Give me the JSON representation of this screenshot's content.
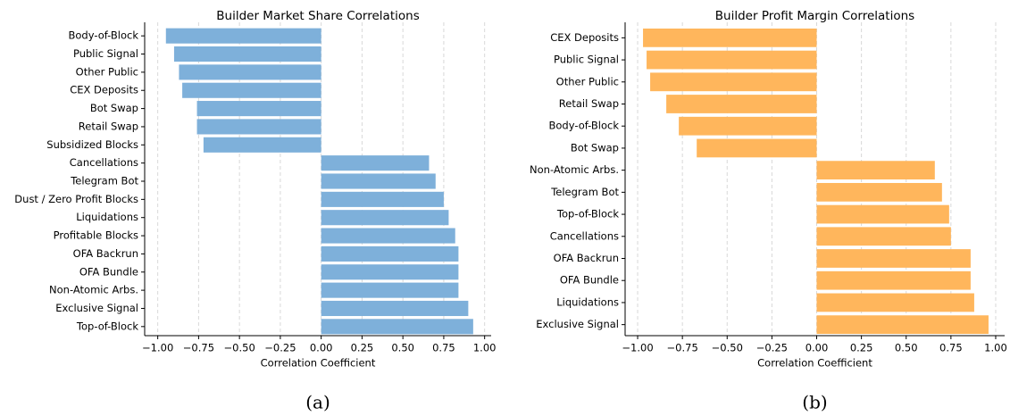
{
  "chart_data": [
    {
      "type": "barh",
      "title": "Builder Market Share Correlations",
      "xlabel": "Correlation Coefficient",
      "caption": "(a)",
      "color": "#7eb0da",
      "grid": true,
      "categories": [
        "Body-of-Block",
        "Public Signal",
        "Other Public",
        "CEX Deposits",
        "Bot Swap",
        "Retail Swap",
        "Subsidized Blocks",
        "Cancellations",
        "Telegram Bot",
        "Dust / Zero Profit Blocks",
        "Liquidations",
        "Profitable Blocks",
        "OFA Backrun",
        "OFA Bundle",
        "Non-Atomic Arbs.",
        "Exclusive Signal",
        "Top-of-Block"
      ],
      "values": [
        -0.95,
        -0.9,
        -0.87,
        -0.85,
        -0.76,
        -0.76,
        -0.72,
        0.66,
        0.7,
        0.75,
        0.78,
        0.82,
        0.84,
        0.84,
        0.84,
        0.9,
        0.93
      ],
      "xlim": [
        -1.08,
        1.04
      ],
      "xticks": [
        {
          "value": -1,
          "label": "−1.00"
        },
        {
          "value": -0.75,
          "label": "−0.75"
        },
        {
          "value": -0.5,
          "label": "−0.50"
        },
        {
          "value": -0.25,
          "label": "−0.25"
        },
        {
          "value": 0,
          "label": "0.00"
        },
        {
          "value": 0.25,
          "label": "0.25"
        },
        {
          "value": 0.5,
          "label": "0.50"
        },
        {
          "value": 0.75,
          "label": "0.75"
        },
        {
          "value": 1,
          "label": "1.00"
        }
      ]
    },
    {
      "type": "barh",
      "title": "Builder Profit Margin Correlations",
      "xlabel": "Correlation Coefficient",
      "caption": "(b)",
      "color": "#ffb65c",
      "grid": true,
      "categories": [
        "CEX Deposits",
        "Public Signal",
        "Other Public",
        "Retail Swap",
        "Body-of-Block",
        "Bot Swap",
        "Non-Atomic Arbs.",
        "Telegram Bot",
        "Top-of-Block",
        "Cancellations",
        "OFA Backrun",
        "OFA Bundle",
        "Liquidations",
        "Exclusive Signal"
      ],
      "values": [
        -0.97,
        -0.95,
        -0.93,
        -0.84,
        -0.77,
        -0.67,
        0.66,
        0.7,
        0.74,
        0.75,
        0.86,
        0.86,
        0.88,
        0.96
      ],
      "xlim": [
        -1.07,
        1.05
      ],
      "xticks": [
        {
          "value": -1,
          "label": "−1.00"
        },
        {
          "value": -0.75,
          "label": "−0.75"
        },
        {
          "value": -0.5,
          "label": "−0.50"
        },
        {
          "value": -0.25,
          "label": "−0.25"
        },
        {
          "value": 0,
          "label": "0.00"
        },
        {
          "value": 0.25,
          "label": "0.25"
        },
        {
          "value": 0.5,
          "label": "0.50"
        },
        {
          "value": 0.75,
          "label": "0.75"
        },
        {
          "value": 1,
          "label": "1.00"
        }
      ]
    }
  ]
}
